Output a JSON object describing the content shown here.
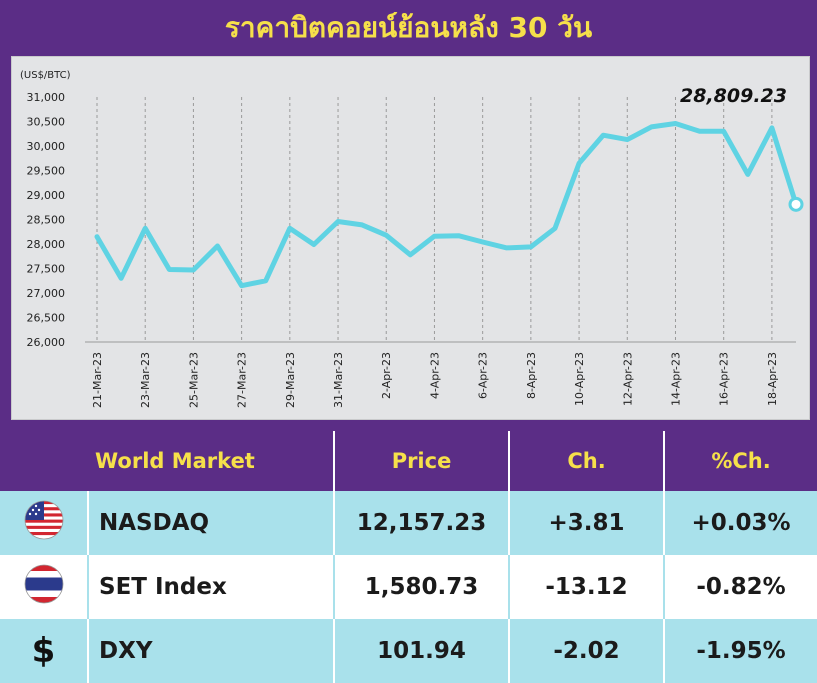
{
  "title": "ราคาบิตคอยน์ย้อนหลัง 30 วัน",
  "chart_data": {
    "type": "line",
    "unit_label": "(US$/BTC)",
    "last_value_label": "28,809.23",
    "ylim": [
      26000,
      31000
    ],
    "yticks": [
      "26,000",
      "26,500",
      "27,000",
      "27,500",
      "28,000",
      "28,500",
      "29,000",
      "29,500",
      "30,000",
      "30,500",
      "31,000"
    ],
    "grid": true,
    "xtick_labels": [
      "21-Mar-23",
      "23-Mar-23",
      "25-Mar-23",
      "27-Mar-23",
      "29-Mar-23",
      "31-Mar-23",
      "2-Apr-23",
      "4-Apr-23",
      "6-Apr-23",
      "8-Apr-23",
      "10-Apr-23",
      "12-Apr-23",
      "14-Apr-23",
      "16-Apr-23",
      "18-Apr-23"
    ],
    "series": [
      {
        "color": "#5fd3e3",
        "values": [
          28150,
          27300,
          28320,
          27480,
          27470,
          27960,
          27150,
          27250,
          28320,
          27990,
          28460,
          28390,
          28180,
          27780,
          28160,
          28170,
          28040,
          27920,
          27940,
          28320,
          29650,
          30220,
          30130,
          30390,
          30460,
          30300,
          30300,
          29420,
          30370,
          28809.23
        ]
      }
    ]
  },
  "table": {
    "headers": {
      "market": "World Market",
      "price": "Price",
      "ch": "Ch.",
      "pch": "%Ch."
    },
    "rows": [
      {
        "icon": "us-flag-icon",
        "name": "NASDAQ",
        "price": "12,157.23",
        "ch": "+3.81",
        "pch": "+0.03%"
      },
      {
        "icon": "thai-flag-icon",
        "name": "SET Index",
        "price": "1,580.73",
        "ch": "-13.12",
        "pch": "-0.82%"
      },
      {
        "icon": "dollar-icon",
        "name": "DXY",
        "price": "101.94",
        "ch": "-2.02",
        "pch": "-1.95%",
        "symbol": "$"
      }
    ]
  }
}
